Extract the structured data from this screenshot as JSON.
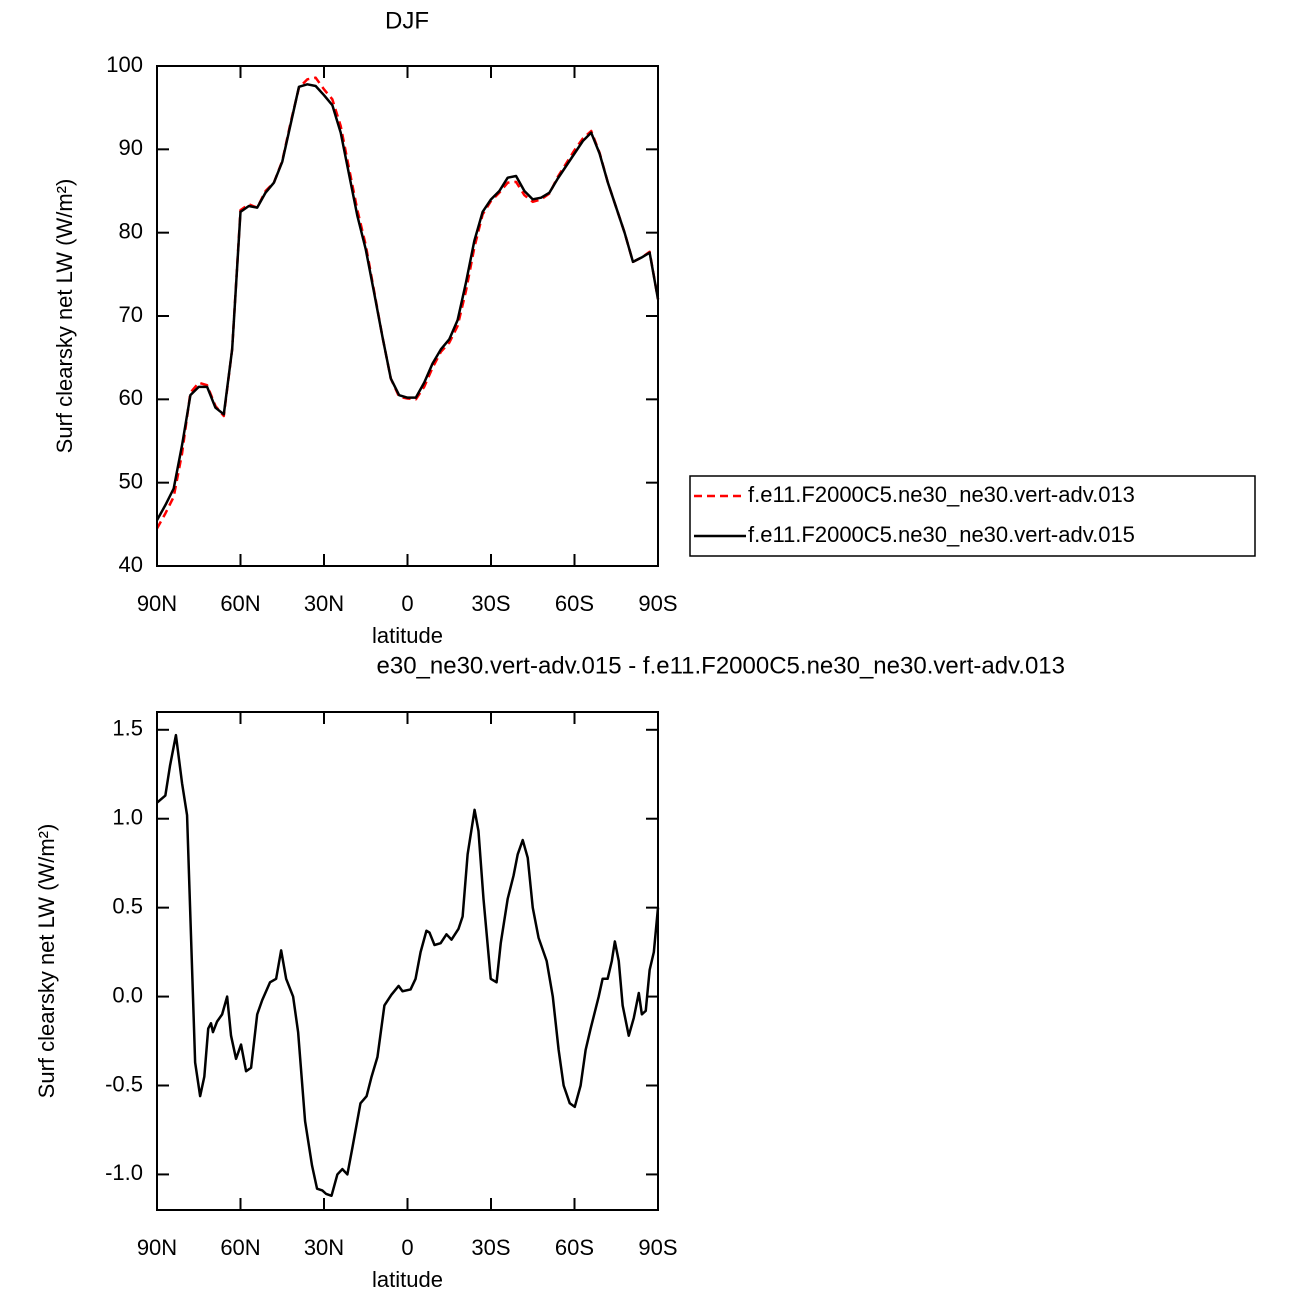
{
  "chart_data": [
    {
      "type": "line",
      "title": "DJF",
      "xlabel": "latitude",
      "ylabel": "Surf clearsky net LW (W/m²)",
      "x": [
        90,
        87,
        84,
        81,
        78,
        75,
        72,
        69,
        66,
        63,
        60,
        57,
        54,
        51,
        48,
        45,
        42,
        39,
        36,
        33,
        30,
        27,
        24,
        21,
        18,
        15,
        12,
        9,
        6,
        3,
        0,
        -3,
        -6,
        -9,
        -12,
        -15,
        -18,
        -21,
        -24,
        -27,
        -30,
        -33,
        -36,
        -39,
        -42,
        -45,
        -48,
        -51,
        -54,
        -57,
        -60,
        -63,
        -66,
        -69,
        -72,
        -75,
        -78,
        -81,
        -84,
        -87,
        -90
      ],
      "series": [
        {
          "name": "f.e11.F2000C5.ne30_ne30.vert-adv.013",
          "color": "#ff0000",
          "line_style": "dashed",
          "values": [
            44.5,
            46.3,
            48.3,
            53.5,
            60.8,
            62,
            61.7,
            59.2,
            58,
            66,
            82.7,
            83.4,
            83,
            85,
            86,
            88.6,
            93.2,
            97.4,
            98.4,
            98.6,
            97.2,
            96,
            92.8,
            87.7,
            82.7,
            78.5,
            73,
            67.5,
            62.5,
            60.3,
            60.1,
            60,
            61.5,
            63.8,
            65.7,
            66.8,
            68.8,
            73,
            78.2,
            82.2,
            83.8,
            84.8,
            86,
            86.1,
            84.5,
            83.7,
            84,
            84.7,
            86.7,
            88.3,
            89.9,
            91.3,
            92.2,
            89.6,
            86,
            83,
            80,
            76.5,
            77,
            77.7,
            72
          ]
        },
        {
          "name": "f.e11.F2000C5.ne30_ne30.vert-adv.015",
          "color": "#000000",
          "line_style": "solid",
          "values": [
            45.5,
            47.3,
            49.3,
            54.5,
            60.5,
            61.5,
            61.5,
            59,
            58.2,
            66,
            82.5,
            83.2,
            83,
            84.8,
            86,
            88.5,
            93,
            97.5,
            97.8,
            97.6,
            96.5,
            95.3,
            92,
            87,
            82,
            78,
            72.8,
            67.5,
            62.5,
            60.5,
            60.2,
            60.2,
            62,
            64.3,
            66,
            67.2,
            69.5,
            74,
            79,
            82.5,
            84,
            85,
            86.6,
            86.8,
            85,
            84,
            84.2,
            84.8,
            86.5,
            88,
            89.5,
            91,
            92,
            89.5,
            86,
            83,
            80,
            76.5,
            77,
            77.6,
            72
          ]
        }
      ],
      "xlim": [
        90,
        -90
      ],
      "xticks": [
        {
          "value": 90,
          "label": "90N"
        },
        {
          "value": 60,
          "label": "60N"
        },
        {
          "value": 30,
          "label": "30N"
        },
        0,
        {
          "value": -30,
          "label": "30S"
        },
        {
          "value": -60,
          "label": "60S"
        },
        {
          "value": -90,
          "label": "90S"
        }
      ],
      "ylim": [
        40,
        100
      ],
      "yticks": [
        40,
        50,
        60,
        70,
        80,
        90,
        100
      ],
      "legend": "right"
    },
    {
      "type": "line",
      "title": "e30_ne30.vert-adv.015 - f.e11.F2000C5.ne30_ne30.vert-adv.013",
      "xlabel": "latitude",
      "ylabel": "Surf clearsky net LW (W/m²)",
      "x": [
        90,
        87,
        85.3,
        83.2,
        81,
        79.2,
        76.3,
        74.5,
        73,
        71.6,
        70.6,
        69.9,
        68.4,
        66.6,
        64.8,
        63.4,
        61.6,
        59.8,
        58,
        56.2,
        54,
        52.2,
        49.4,
        47.2,
        45.4,
        43.6,
        41.1,
        39.3,
        36.8,
        34.3,
        32.5,
        30.6,
        29.2,
        27.3,
        25.2,
        23.4,
        21.6,
        19.8,
        16.9,
        14.7,
        12.9,
        10.8,
        8.3,
        5.8,
        3.2,
        1.8,
        -1.1,
        -2.9,
        -4.7,
        -6.8,
        -7.9,
        -9.7,
        -11.9,
        -14,
        -15.8,
        -18.3,
        -19.8,
        -21.6,
        -24.1,
        -25.5,
        -27.3,
        -29.9,
        -32,
        -33.5,
        -36,
        -38.1,
        -39.6,
        -41.4,
        -43.2,
        -45,
        -47.1,
        -50,
        -52.2,
        -54.3,
        -56.1,
        -58.3,
        -60.1,
        -62.2,
        -64,
        -65.8,
        -68.7,
        -70.1,
        -71.9,
        -73.4,
        -74.5,
        -75.9,
        -77.3,
        -79.5,
        -81.3,
        -83.1,
        -84.2,
        -85.6,
        -87,
        -88.5,
        -90
      ],
      "series": [
        {
          "color": "#000000",
          "line_style": "solid",
          "values": [
            1.09,
            1.13,
            1.3,
            1.47,
            1.2,
            1.02,
            -0.37,
            -0.56,
            -0.45,
            -0.18,
            -0.15,
            -0.2,
            -0.14,
            -0.1,
            0,
            -0.22,
            -0.35,
            -0.27,
            -0.42,
            -0.4,
            -0.1,
            -0.02,
            0.08,
            0.1,
            0.26,
            0.1,
            0,
            -0.2,
            -0.7,
            -0.95,
            -1.08,
            -1.09,
            -1.11,
            -1.12,
            -1,
            -0.97,
            -1,
            -0.85,
            -0.6,
            -0.56,
            -0.45,
            -0.34,
            -0.05,
            0.01,
            0.06,
            0.03,
            0.04,
            0.1,
            0.25,
            0.37,
            0.36,
            0.29,
            0.3,
            0.35,
            0.32,
            0.38,
            0.45,
            0.8,
            1.05,
            0.93,
            0.55,
            0.1,
            0.08,
            0.3,
            0.55,
            0.68,
            0.8,
            0.88,
            0.78,
            0.5,
            0.33,
            0.2,
            0,
            -0.3,
            -0.5,
            -0.6,
            -0.62,
            -0.5,
            -0.3,
            -0.18,
            0,
            0.1,
            0.1,
            0.2,
            0.31,
            0.2,
            -0.05,
            -0.22,
            -0.12,
            0.02,
            -0.1,
            -0.08,
            0.15,
            0.25,
            0.5
          ]
        }
      ],
      "xlim": [
        90,
        -90
      ],
      "xticks": [
        {
          "value": 90,
          "label": "90N"
        },
        {
          "value": 60,
          "label": "60N"
        },
        {
          "value": 30,
          "label": "30N"
        },
        0,
        {
          "value": -30,
          "label": "30S"
        },
        {
          "value": -60,
          "label": "60S"
        },
        {
          "value": -90,
          "label": "90S"
        }
      ],
      "ylim": [
        -1.2,
        1.6
      ],
      "yticks": [
        {
          "value": -1,
          "label": "-1.0"
        },
        -0.5,
        {
          "value": 0,
          "label": "0.0"
        },
        0.5,
        {
          "value": 1,
          "label": "1.0"
        },
        1.5
      ]
    }
  ]
}
